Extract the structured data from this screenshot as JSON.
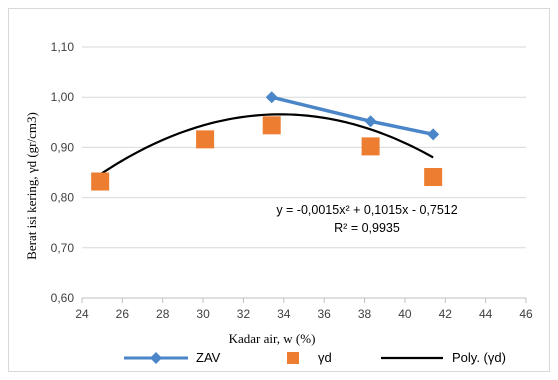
{
  "chart_data": {
    "type": "scatter",
    "xlabel": "Kadar air, w (%)",
    "ylabel": "Berat isi kering, γd (gr/cm3)",
    "xlim": [
      24,
      46
    ],
    "ylim": [
      0.6,
      1.1
    ],
    "x_ticks": [
      "24",
      "26",
      "28",
      "30",
      "32",
      "34",
      "36",
      "38",
      "40",
      "42",
      "44",
      "46"
    ],
    "y_ticks": [
      "0,60",
      "0,70",
      "0,80",
      "0,90",
      "1,00",
      "1,10"
    ],
    "grid": "horizontal",
    "legend_position": "bottom",
    "series": [
      {
        "name": "ZAV",
        "kind": "line-marker",
        "marker": "diamond",
        "color": "#4a86c8",
        "points": [
          {
            "x": 33.4,
            "y": 1.0
          },
          {
            "x": 38.3,
            "y": 0.952
          },
          {
            "x": 41.4,
            "y": 0.926
          }
        ]
      },
      {
        "name": "γd",
        "kind": "marker",
        "marker": "square",
        "color": "#ed7d31",
        "points": [
          {
            "x": 24.9,
            "y": 0.832
          },
          {
            "x": 30.1,
            "y": 0.916
          },
          {
            "x": 33.4,
            "y": 0.944
          },
          {
            "x": 38.3,
            "y": 0.902
          },
          {
            "x": 41.4,
            "y": 0.841
          }
        ]
      },
      {
        "name": "Poly. (γd)",
        "kind": "trendline",
        "color": "#000000",
        "coefficients": {
          "a": -0.0015,
          "b": 0.1015,
          "c": -0.7512
        },
        "x_range": [
          24.9,
          41.4
        ]
      }
    ],
    "annotations": [
      "y = -0,0015x² + 0,1015x - 0,7512",
      "R² = 0,9935"
    ]
  },
  "legend": {
    "zav": "ZAV",
    "yd": "γd",
    "poly": "Poly. (γd)"
  }
}
